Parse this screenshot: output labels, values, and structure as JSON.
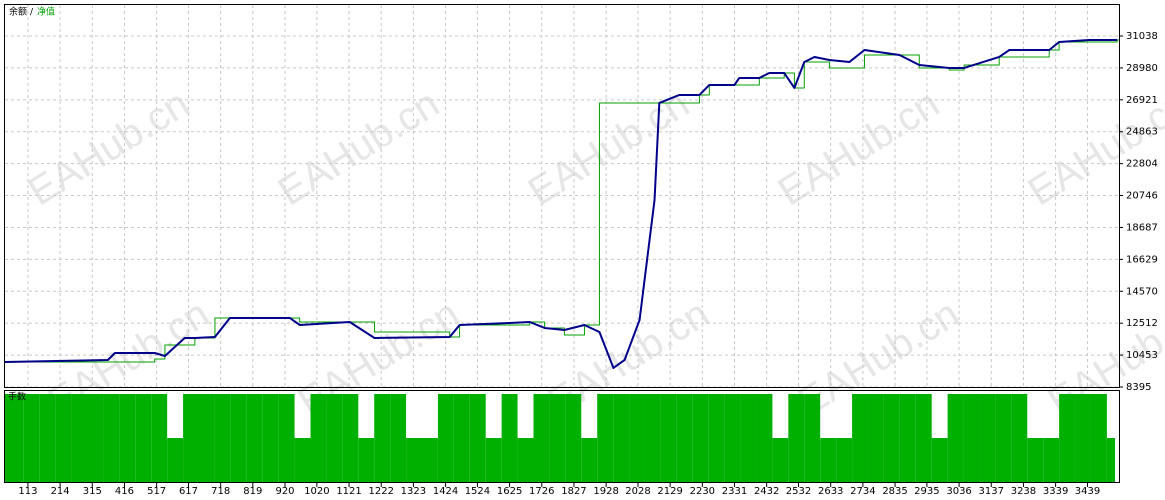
{
  "watermark": "EAHub.cn",
  "chart_data": [
    {
      "type": "line",
      "legend_separator": "/",
      "xlim": [
        41,
        3538
      ],
      "ylim": [
        8395,
        33038
      ],
      "xticks": [
        113,
        214,
        315,
        416,
        517,
        617,
        718,
        819,
        920,
        1020,
        1121,
        1222,
        1323,
        1424,
        1524,
        1625,
        1726,
        1827,
        1928,
        2028,
        2129,
        2230,
        2331,
        2432,
        2532,
        2633,
        2734,
        2835,
        2935,
        3036,
        3137,
        3238,
        3339,
        3439
      ],
      "yticks": [
        8395,
        10453,
        12512,
        14570,
        16629,
        18687,
        20746,
        22804,
        24863,
        26921,
        28980,
        31038
      ],
      "grid": true,
      "series": [
        {
          "name": "余额",
          "color": "#00a000",
          "step": true,
          "x": [
            41,
            511,
            543,
            637,
            700,
            935,
            966,
            1123,
            1201,
            1437,
            1468,
            1688,
            1735,
            1797,
            1860,
            1907,
            2221,
            2252,
            2409,
            2487,
            2519,
            2550,
            2629,
            2739,
            2911,
            3005,
            3052,
            3162,
            3319,
            3350,
            3532
          ],
          "values": [
            10008,
            10200,
            11105,
            11556,
            12847,
            12847,
            12588,
            12588,
            11943,
            11620,
            12395,
            12588,
            12202,
            11750,
            12395,
            26717,
            27234,
            27879,
            28330,
            28653,
            27685,
            29363,
            28975,
            29814,
            28975,
            28846,
            29169,
            29685,
            30137,
            30653,
            30782
          ]
        },
        {
          "name": "净值",
          "color": "#00008b",
          "x": [
            41,
            364,
            386,
            511,
            543,
            605,
            637,
            700,
            747,
            935,
            966,
            1123,
            1201,
            1437,
            1468,
            1625,
            1688,
            1735,
            1797,
            1860,
            1907,
            1951,
            1986,
            2033,
            2080,
            2095,
            2158,
            2221,
            2252,
            2331,
            2346,
            2409,
            2440,
            2487,
            2519,
            2550,
            2582,
            2629,
            2692,
            2739,
            2849,
            2911,
            3005,
            3052,
            3162,
            3194,
            3319,
            3350,
            3444,
            3532
          ],
          "values": [
            10008,
            10137,
            10588,
            10588,
            10395,
            11556,
            11556,
            11620,
            12847,
            12847,
            12395,
            12588,
            11556,
            11620,
            12395,
            12524,
            12588,
            12202,
            12072,
            12395,
            11943,
            9621,
            10137,
            12717,
            20460,
            26717,
            27234,
            27234,
            27879,
            27879,
            28330,
            28330,
            28653,
            28653,
            27685,
            29363,
            29685,
            29491,
            29363,
            30137,
            29814,
            29169,
            28975,
            28975,
            29685,
            30137,
            30137,
            30653,
            30782,
            30782
          ]
        }
      ]
    },
    {
      "type": "bar",
      "name": "手数",
      "color": "#00b000",
      "xlim": [
        41,
        3538
      ],
      "x": [
        50,
        100,
        150,
        200,
        250,
        300,
        350,
        400,
        450,
        500,
        550,
        600,
        650,
        700,
        750,
        800,
        850,
        900,
        950,
        1000,
        1050,
        1100,
        1150,
        1200,
        1250,
        1300,
        1350,
        1400,
        1450,
        1500,
        1550,
        1600,
        1650,
        1700,
        1750,
        1800,
        1850,
        1900,
        1950,
        2000,
        2050,
        2100,
        2150,
        2200,
        2250,
        2300,
        2350,
        2400,
        2450,
        2500,
        2550,
        2600,
        2650,
        2700,
        2750,
        2800,
        2850,
        2900,
        2950,
        3000,
        3050,
        3100,
        3150,
        3200,
        3250,
        3300,
        3350,
        3400,
        3450,
        3500
      ],
      "values": [
        2,
        2,
        2,
        2,
        2,
        2,
        2,
        2,
        2,
        2,
        1,
        2,
        2,
        2,
        2,
        2,
        2,
        2,
        1,
        2,
        2,
        2,
        1,
        2,
        2,
        1,
        1,
        2,
        2,
        2,
        1,
        2,
        1,
        2,
        2,
        2,
        1,
        2,
        2,
        2,
        2,
        2,
        2,
        2,
        2,
        2,
        2,
        2,
        1,
        2,
        2,
        1,
        1,
        2,
        2,
        2,
        2,
        2,
        1,
        2,
        2,
        2,
        2,
        2,
        1,
        1,
        2,
        2,
        2,
        1
      ]
    }
  ]
}
